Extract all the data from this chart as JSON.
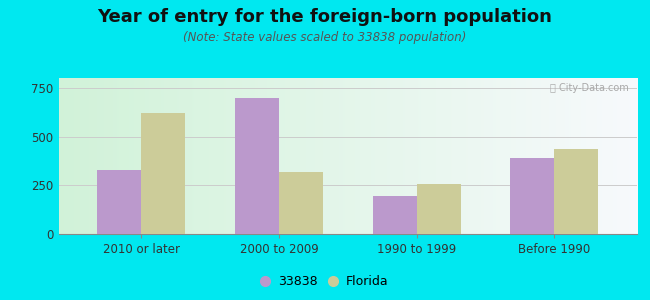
{
  "title": "Year of entry for the foreign-born population",
  "subtitle": "(Note: State values scaled to 33838 population)",
  "categories": [
    "2010 or later",
    "2000 to 2009",
    "1990 to 1999",
    "Before 1990"
  ],
  "values_33838": [
    330,
    700,
    195,
    390
  ],
  "values_florida": [
    620,
    320,
    255,
    435
  ],
  "color_33838": "#bb99cc",
  "color_florida": "#cccc99",
  "legend_33838": "33838",
  "legend_florida": "Florida",
  "ylim": [
    0,
    800
  ],
  "yticks": [
    0,
    250,
    500,
    750
  ],
  "background_outer": "#00e8f0",
  "bar_width": 0.32,
  "title_fontsize": 13,
  "subtitle_fontsize": 8.5,
  "tick_fontsize": 8.5
}
